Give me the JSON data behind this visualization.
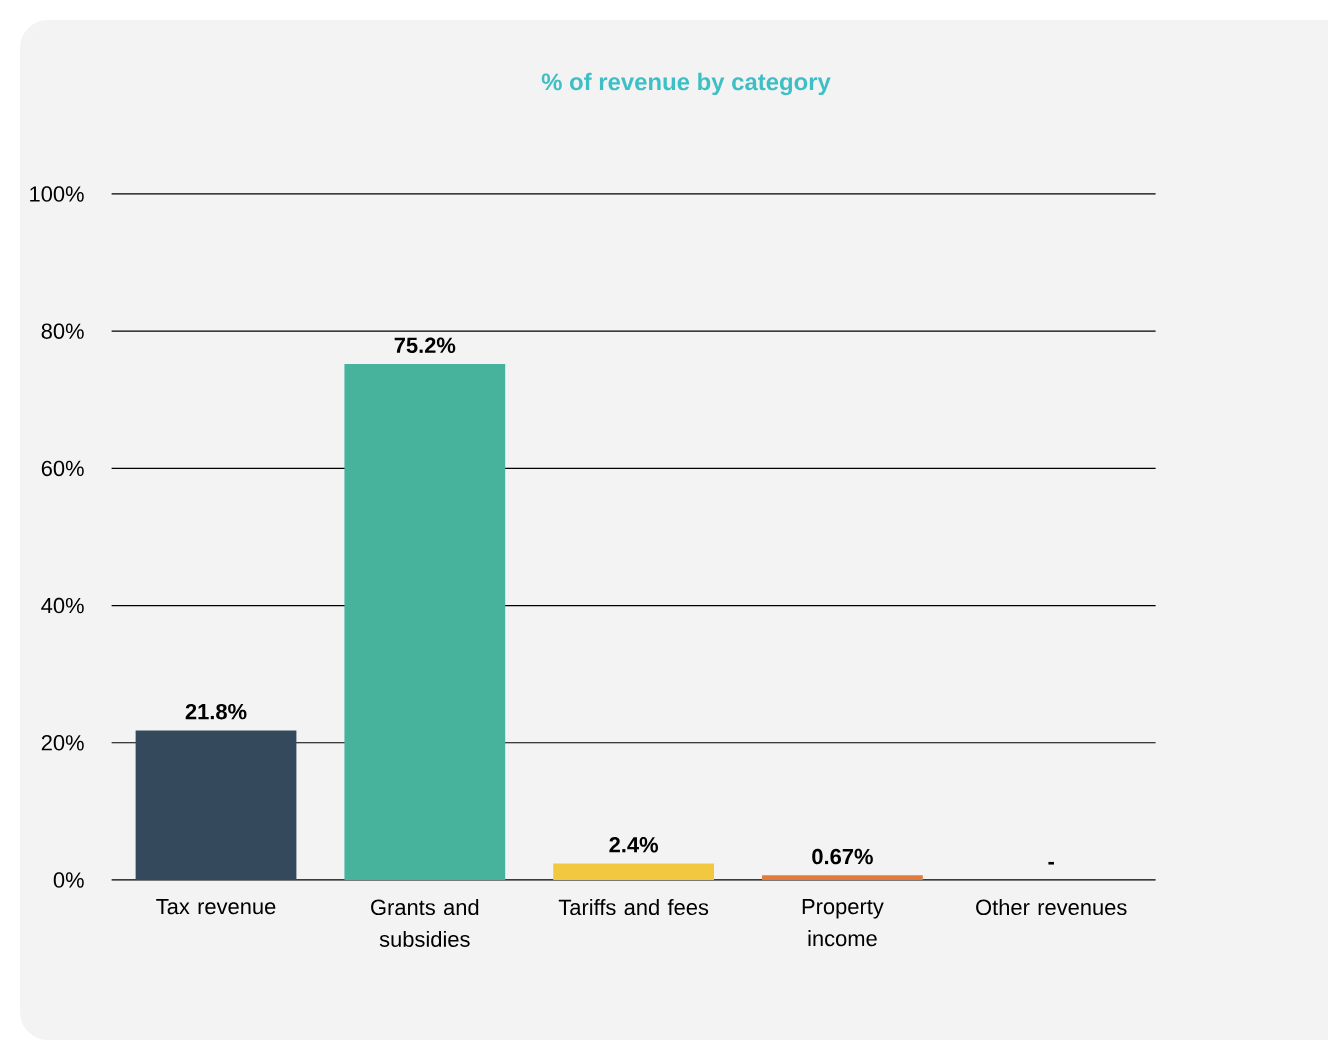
{
  "chart_data": {
    "type": "bar",
    "title": "% of revenue by category",
    "categories": [
      "Tax revenue",
      "Grants and subsidies",
      "Tariffs and fees",
      "Property income",
      "Other revenues"
    ],
    "values": [
      21.8,
      75.2,
      2.4,
      0.67,
      0
    ],
    "colors": [
      "#344a5c",
      "#48b39d",
      "#f1c840",
      "#e27b3c",
      "#9e9e9e"
    ],
    "value_labels": [
      "21.8%",
      "75.2%",
      "2.4%",
      "0.67%",
      "-"
    ],
    "ylim": [
      0,
      100
    ],
    "yticks": [
      {
        "value": 0,
        "label": "0%"
      },
      {
        "value": 20,
        "label": "20%"
      },
      {
        "value": 40,
        "label": "40%"
      },
      {
        "value": 60,
        "label": "60%"
      },
      {
        "value": 80,
        "label": "80%"
      },
      {
        "value": 100,
        "label": "100%"
      }
    ],
    "grid": "y"
  }
}
